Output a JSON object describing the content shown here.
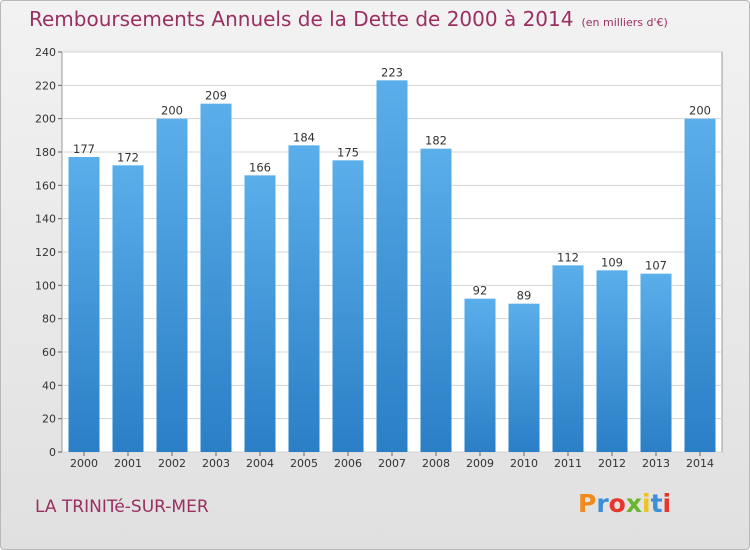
{
  "header": {
    "title": "Remboursements Annuels de la Dette de 2000 à 2014",
    "unit": "(en milliers d'€)"
  },
  "footer": {
    "city": "LA TRINITé-SUR-MER",
    "logo": "Proxiti",
    "logo_colors": [
      "#f08a1c",
      "#3c8fd6",
      "#e8342a",
      "#6ab42e",
      "#f0c21c",
      "#3c8fd6",
      "#e8342a"
    ]
  },
  "colors": {
    "bar_light": "#5aaeea",
    "bar_dark": "#2a7fc6",
    "title": "#9a2f62"
  },
  "chart_data": {
    "type": "bar",
    "categories": [
      "2000",
      "2001",
      "2002",
      "2003",
      "2004",
      "2005",
      "2006",
      "2007",
      "2008",
      "2009",
      "2010",
      "2011",
      "2012",
      "2013",
      "2014"
    ],
    "values": [
      177,
      172,
      200,
      209,
      166,
      184,
      175,
      223,
      182,
      92,
      89,
      112,
      109,
      107,
      200
    ],
    "title": "Remboursements Annuels de la Dette de 2000 à 2014",
    "xlabel": "",
    "ylabel": "",
    "ylim": [
      0,
      240
    ],
    "yticks": [
      0,
      20,
      40,
      60,
      80,
      100,
      120,
      140,
      160,
      180,
      200,
      220,
      240
    ],
    "grid": true,
    "legend": "none"
  }
}
